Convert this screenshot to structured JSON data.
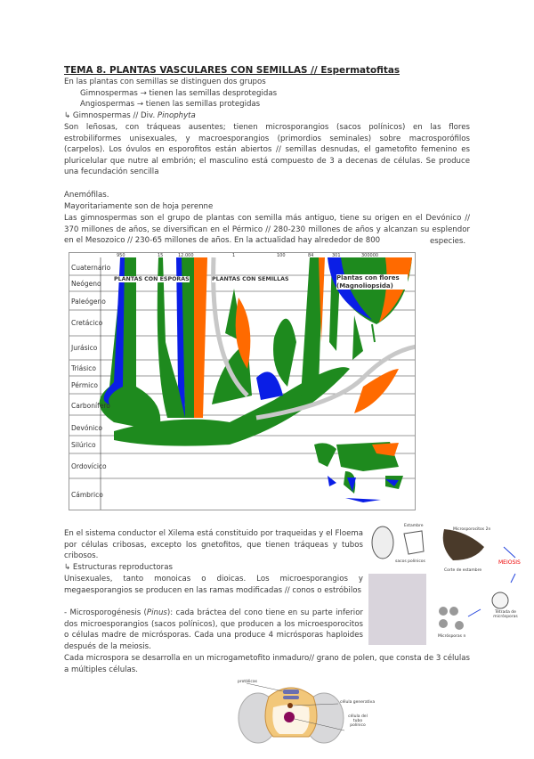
{
  "title": "TEMA 8. PLANTAS VASCULARES CON SEMILLAS // Espermatofitas",
  "intro": "En las plantas con semillas se distinguen dos grupos",
  "groups": [
    "Gimnospermas → tienen las semillas desprotegidas",
    "Angiospermas → tienen las semillas protegidas"
  ],
  "gymno_heading": "↳ Gimnospermas // Div. ",
  "gymno_heading_italic": "Pinophyta",
  "p1": "Son leñosas, con tráqueas ausentes; tienen microsporangios (sacos polínicos) en las flores estrobiliformes unisexuales, y macroesporangios (primordios seminales) sobre macrosporófilos (carpelos). Los óvulos en esporofitos están abiertos // semillas desnudas, el gametofito femenino es pluricelular que nutre al embrión; el masculino está compuesto de 3 a decenas de células. Se produce una fecundación sencilla",
  "p2": "Anemófilas.",
  "p3": "Mayoritariamente son de hoja perenne",
  "p4": "Las gimnospermas son el grupo de plantas con semilla más antiguo, tiene su origen en el Devónico // 370 millones de años, se diversifican en el Pérmico // 280-230 millones de años y alcanzan su esplendor en el Mesozoico // 230-65 millones de años. En la actualidad hay alrededor de 800",
  "p4_end": "especies.",
  "figure1": {
    "periods": [
      "Cuaternario",
      "Neógeno",
      "Paleógeno",
      "Cretácico",
      "Jurásico",
      "Triásico",
      "Pérmico",
      "Carbonífero",
      "Devónico",
      "Silúrico",
      "Ordovícico",
      "Cámbrico"
    ],
    "top_counts": [
      "950",
      "15",
      "12.000",
      "1",
      "100",
      "84",
      "301",
      "300000"
    ],
    "label_spores": "PLANTAS CON ESPORAS",
    "label_seeds": "PLANTAS CON SEMILLAS",
    "label_flowers": "Plantas con flores (Magnoliopsida)",
    "colors": {
      "green": "#1e8a1e",
      "blue": "#0a1ee6",
      "orange": "#ff6a00",
      "grey": "#c8c8c8"
    }
  },
  "p5": "En el sistema conductor el Xilema está constituido por traqueidas y el Floema por células cribosas, excepto los gnetofitos, que tienen tráqueas y tubos cribosos.",
  "repro_heading": "↳ Estructuras reproductoras",
  "p6": "Unisexuales, tanto monoicas o dioicas. Los microesporangios y megaesporangios se producen en las ramas modificadas // conos o estróbilos",
  "p7_a": "- Microsporogénesis (",
  "p7_i": "Pinus",
  "p7_b": "): cada bráctea del cono tiene en su parte inferior dos microesporangios (sacos polínicos), que producen a los microesporocitos o células madre de micrósporas. Cada una produce 4 micrósporas haploides después de la meiosis.",
  "p8": "Cada microspora se desarrolla en un microgametofito inmaduro// grano de polen, que consta de 3 células a múltiples células.",
  "figure2": {
    "labels": [
      "Estambre",
      "sacos polínicos",
      "Microsporocitos 2n",
      "Corte de estambre",
      "MEIOSIS",
      "Tétrada de micrósporas",
      "Micrósporas n"
    ]
  },
  "figure3": {
    "labels": [
      "protálicas",
      "célula generativa",
      "célula del tubo polínico"
    ]
  }
}
